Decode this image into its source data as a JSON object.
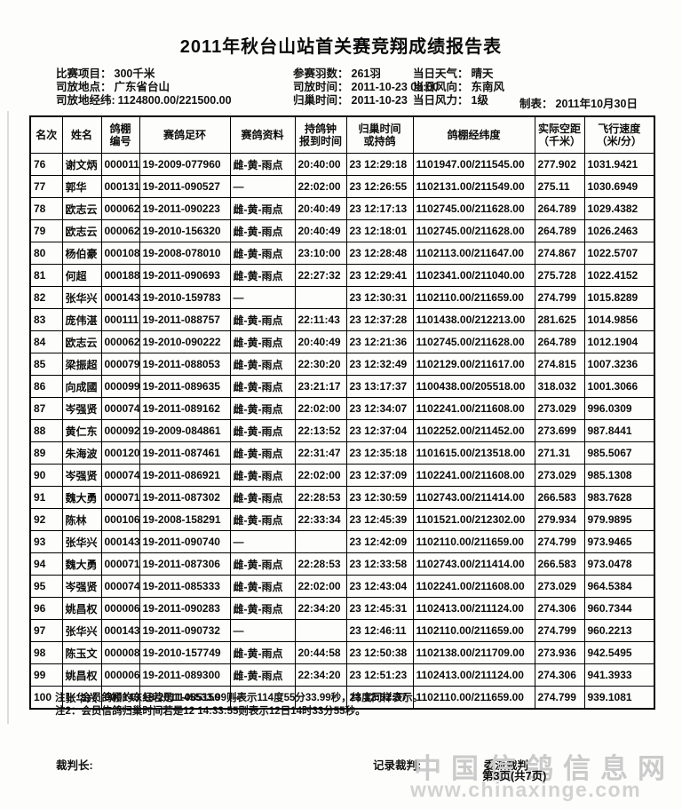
{
  "title": "2011年秋台山站首关赛竞翔成绩报告表",
  "info": {
    "left": [
      {
        "label": "比赛项目：",
        "value": "300千米"
      },
      {
        "label": "司放地点：",
        "value": "广东省台山"
      },
      {
        "label": "司放地经纬:",
        "value": "1124800.00/221500.00"
      }
    ],
    "middle": [
      {
        "label": "参赛羽数：",
        "value": "261羽"
      },
      {
        "label": "司放时间：",
        "value": "2011-10-23 08:00"
      },
      {
        "label": "归巢时间：",
        "value": "2011-10-23"
      }
    ],
    "right": [
      {
        "label": "当日天气：",
        "value": "晴天"
      },
      {
        "label": "当日风向：",
        "value": "东南风"
      },
      {
        "label": "当日风力：",
        "value": "1级"
      }
    ],
    "made": {
      "label": "制表：",
      "value": "2011年10月30日"
    }
  },
  "table": {
    "headers": [
      "名次",
      "姓名",
      "鸽棚\n编号",
      "赛鸽足环",
      "赛鸽资料",
      "持鸽钟\n报到时间",
      "归巢时间\n或持鸽",
      "鸽棚经纬度",
      "实际空距\n（千米）",
      "飞行速度\n（米/分）"
    ],
    "rows": [
      [
        "76",
        "谢文炳",
        "000011",
        "19-2009-077960",
        "雌-黄-雨点",
        "20:40:00",
        "23 12:29:18",
        "1101947.00/211545.00",
        "277.902",
        "1031.9421"
      ],
      [
        "77",
        "郭华",
        "000131",
        "19-2011-090527",
        "—",
        "22:02:00",
        "23 12:26:55",
        "1102131.00/211549.00",
        "275.11",
        "1030.6949"
      ],
      [
        "78",
        "欧志云",
        "000062",
        "19-2011-090223",
        "雌-黄-雨点",
        "20:40:49",
        "23 12:17:13",
        "1102745.00/211628.00",
        "264.789",
        "1029.4382"
      ],
      [
        "79",
        "欧志云",
        "000062",
        "19-2010-156320",
        "雌-黄-雨点",
        "20:40:49",
        "23 12:18:01",
        "1102745.00/211628.00",
        "264.789",
        "1026.2463"
      ],
      [
        "80",
        "杨伯豪",
        "000108",
        "19-2008-078010",
        "雌-黄-雨点",
        "23:10:00",
        "23 12:28:48",
        "1102113.00/211647.00",
        "274.867",
        "1022.5707"
      ],
      [
        "81",
        "何超",
        "000188",
        "19-2011-090693",
        "雌-黄-雨点",
        "22:27:32",
        "23 12:29:41",
        "1102341.00/211040.00",
        "275.728",
        "1022.4152"
      ],
      [
        "82",
        "张华兴",
        "000143",
        "19-2010-159783",
        "—",
        "",
        "23 12:30:31",
        "1102110.00/211659.00",
        "274.799",
        "1015.8289"
      ],
      [
        "83",
        "庞伟湛",
        "000111",
        "19-2011-088757",
        "雌-黄-雨点",
        "22:11:43",
        "23 12:37:28",
        "1101438.00/212213.00",
        "281.625",
        "1014.9856"
      ],
      [
        "84",
        "欧志云",
        "000062",
        "19-2010-090222",
        "雌-黄-雨点",
        "20:40:49",
        "23 12:21:36",
        "1102745.00/211628.00",
        "264.789",
        "1012.1904"
      ],
      [
        "85",
        "梁振超",
        "000079",
        "19-2011-088053",
        "雌-黄-雨点",
        "22:30:20",
        "23 12:32:49",
        "1102129.00/211617.00",
        "274.815",
        "1007.3236"
      ],
      [
        "86",
        "向成國",
        "000099",
        "19-2011-089635",
        "雌-黄-雨点",
        "23:21:17",
        "23 13:17:37",
        "1100438.00/205518.00",
        "318.032",
        "1001.3066"
      ],
      [
        "87",
        "岑强贤",
        "000074",
        "19-2011-089162",
        "雌-黄-雨点",
        "22:02:00",
        "23 12:34:07",
        "1102241.00/211608.00",
        "273.029",
        "996.0309"
      ],
      [
        "88",
        "黄仁东",
        "000092",
        "19-2009-084861",
        "雌-黄-雨点",
        "22:13:52",
        "23 12:37:04",
        "1102252.00/211452.00",
        "273.699",
        "987.8441"
      ],
      [
        "89",
        "朱海波",
        "000120",
        "19-2011-087461",
        "雌-黄-雨点",
        "22:31:47",
        "23 12:35:18",
        "1101615.00/213518.00",
        "271.31",
        "985.5067"
      ],
      [
        "90",
        "岑强贤",
        "000074",
        "19-2011-086921",
        "雌-黄-雨点",
        "22:02:00",
        "23 12:37:09",
        "1102241.00/211608.00",
        "273.029",
        "985.1308"
      ],
      [
        "91",
        "魏大勇",
        "000071",
        "19-2011-087302",
        "雌-黄-雨点",
        "22:28:53",
        "23 12:30:59",
        "1102743.00/211414.00",
        "266.583",
        "983.7628"
      ],
      [
        "92",
        "陈林",
        "000106",
        "19-2008-158291",
        "雌-黄-雨点",
        "22:33:34",
        "23 12:45:39",
        "1101521.00/212302.00",
        "279.934",
        "979.9895"
      ],
      [
        "93",
        "张华兴",
        "000143",
        "19-2011-090740",
        "—",
        "",
        "23 12:42:09",
        "1102110.00/211659.00",
        "274.799",
        "973.9465"
      ],
      [
        "94",
        "魏大勇",
        "000071",
        "19-2011-087306",
        "雌-黄-雨点",
        "22:28:53",
        "23 12:33:58",
        "1102743.00/211414.00",
        "266.583",
        "973.0478"
      ],
      [
        "95",
        "岑强贤",
        "000074",
        "19-2011-085333",
        "雌-黄-雨点",
        "22:02:00",
        "23 12:43:04",
        "1102241.00/211608.00",
        "273.029",
        "964.5384"
      ],
      [
        "96",
        "姚昌权",
        "000006",
        "19-2011-090283",
        "雌-黄-雨点",
        "22:34:20",
        "23 12:45:31",
        "1102413.00/211124.00",
        "274.306",
        "960.7344"
      ],
      [
        "97",
        "张华兴",
        "000143",
        "19-2011-090732",
        "—",
        "",
        "23 12:46:11",
        "1102110.00/211659.00",
        "274.799",
        "960.2213"
      ],
      [
        "98",
        "陈玉文",
        "000008",
        "19-2010-157749",
        "雌-黄-雨点",
        "20:44:58",
        "23 12:50:38",
        "1102138.00/211709.00",
        "273.936",
        "942.5495"
      ],
      [
        "99",
        "姚昌权",
        "000006",
        "19-2011-089300",
        "雌-黄-雨点",
        "22:34:20",
        "23 12:51:23",
        "1102413.00/211124.00",
        "274.306",
        "941.3933"
      ],
      [
        "100",
        "张华兴",
        "000143",
        "19-2011-085150",
        "—",
        "",
        "23 12:52:37",
        "1102110.00/211659.00",
        "274.799",
        "939.1081"
      ]
    ]
  },
  "notes": [
    "注1：会员鸽棚的东经若是1145533.99则表示114度55分33.99秒，纬度同样表示。",
    "注2：会员信鸽归巢时间若是12 14:33:55则表示12日14时33分55秒。"
  ],
  "signatures": {
    "chief": "裁判长:",
    "recorder": "记录裁判:",
    "delegate": "委派裁判:"
  },
  "watermark": {
    "line1": "中国信鸽信息网",
    "line2": "www.chinaxinge.com"
  },
  "page_info": "第3页(共7页)"
}
